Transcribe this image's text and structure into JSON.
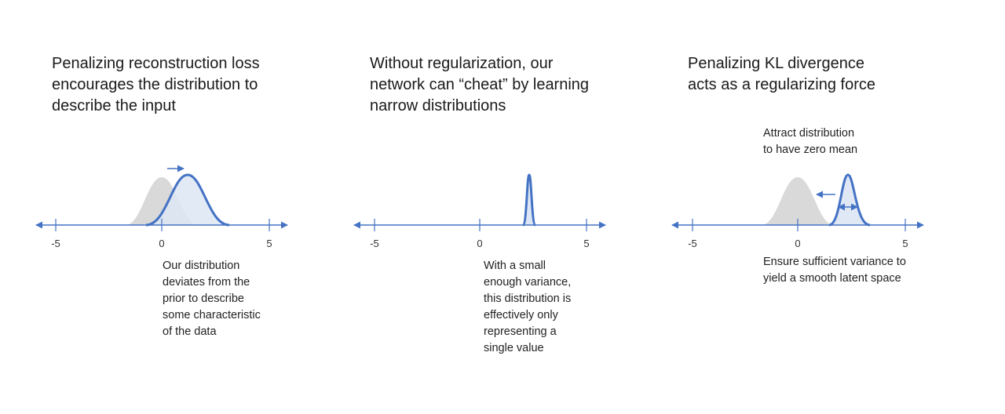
{
  "colors": {
    "accent": "#4472c4",
    "fill": "#dde6f4",
    "prior": "#d9d9d9"
  },
  "panels": [
    {
      "title": "Penalizing reconstruction loss\nencourages the distribution to\ndescribe the input",
      "ticks": [
        "-5",
        "0",
        "5"
      ],
      "caption": "Our distribution\ndeviates from the\nprior to describe\nsome characteristic\nof the data"
    },
    {
      "title": "Without regularization, our\nnetwork can “cheat” by learning\nnarrow distributions",
      "ticks": [
        "-5",
        "0",
        "5"
      ],
      "caption": "With a small\nenough variance,\nthis distribution is\neffectively only\nrepresenting a\nsingle value"
    },
    {
      "title": "Penalizing KL divergence\nacts as a regularizing force",
      "ticks": [
        "-5",
        "0",
        "5"
      ],
      "annotation": "Attract distribution\nto have zero mean",
      "caption": "Ensure sufficient variance to\nyield a smooth latent space"
    }
  ]
}
